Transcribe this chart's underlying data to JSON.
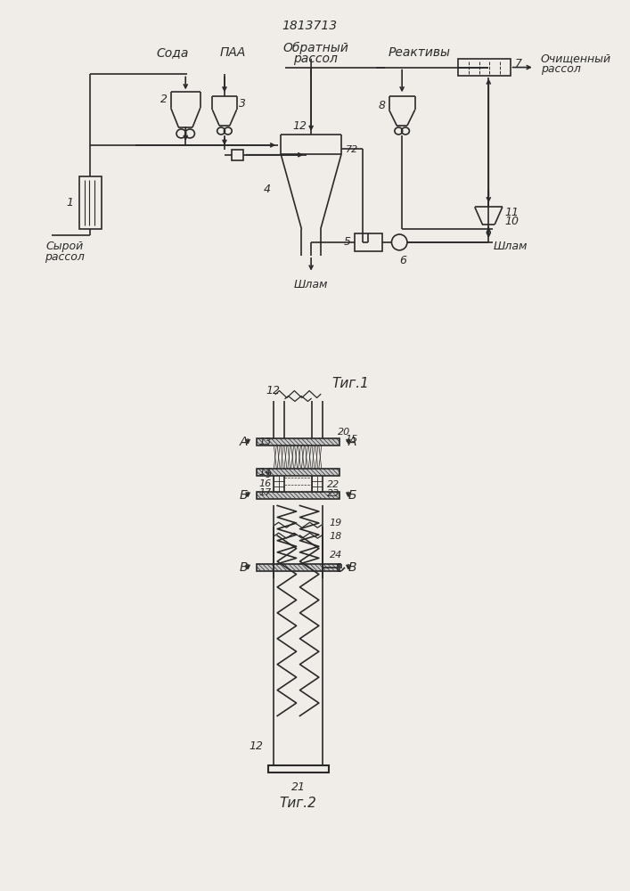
{
  "title": "1813713",
  "fig1_label": "Τиг.1",
  "fig2_label": "Τиг.2",
  "bg_color": "#f0ede8",
  "line_color": "#2a2a2a",
  "labels": {
    "soda": "Сода",
    "paa": "ПАА",
    "obratny_1": "Обратный",
    "obratny_2": "рассол",
    "reaktivy": "Реактивы",
    "ochishheny_1": "Очищенный",
    "ochishheny_2": "рассол",
    "syroy_1": "Сырой",
    "syroy_2": "рассол",
    "shlam": "Шлам",
    "A": "А",
    "B": "Б",
    "V": "В"
  }
}
